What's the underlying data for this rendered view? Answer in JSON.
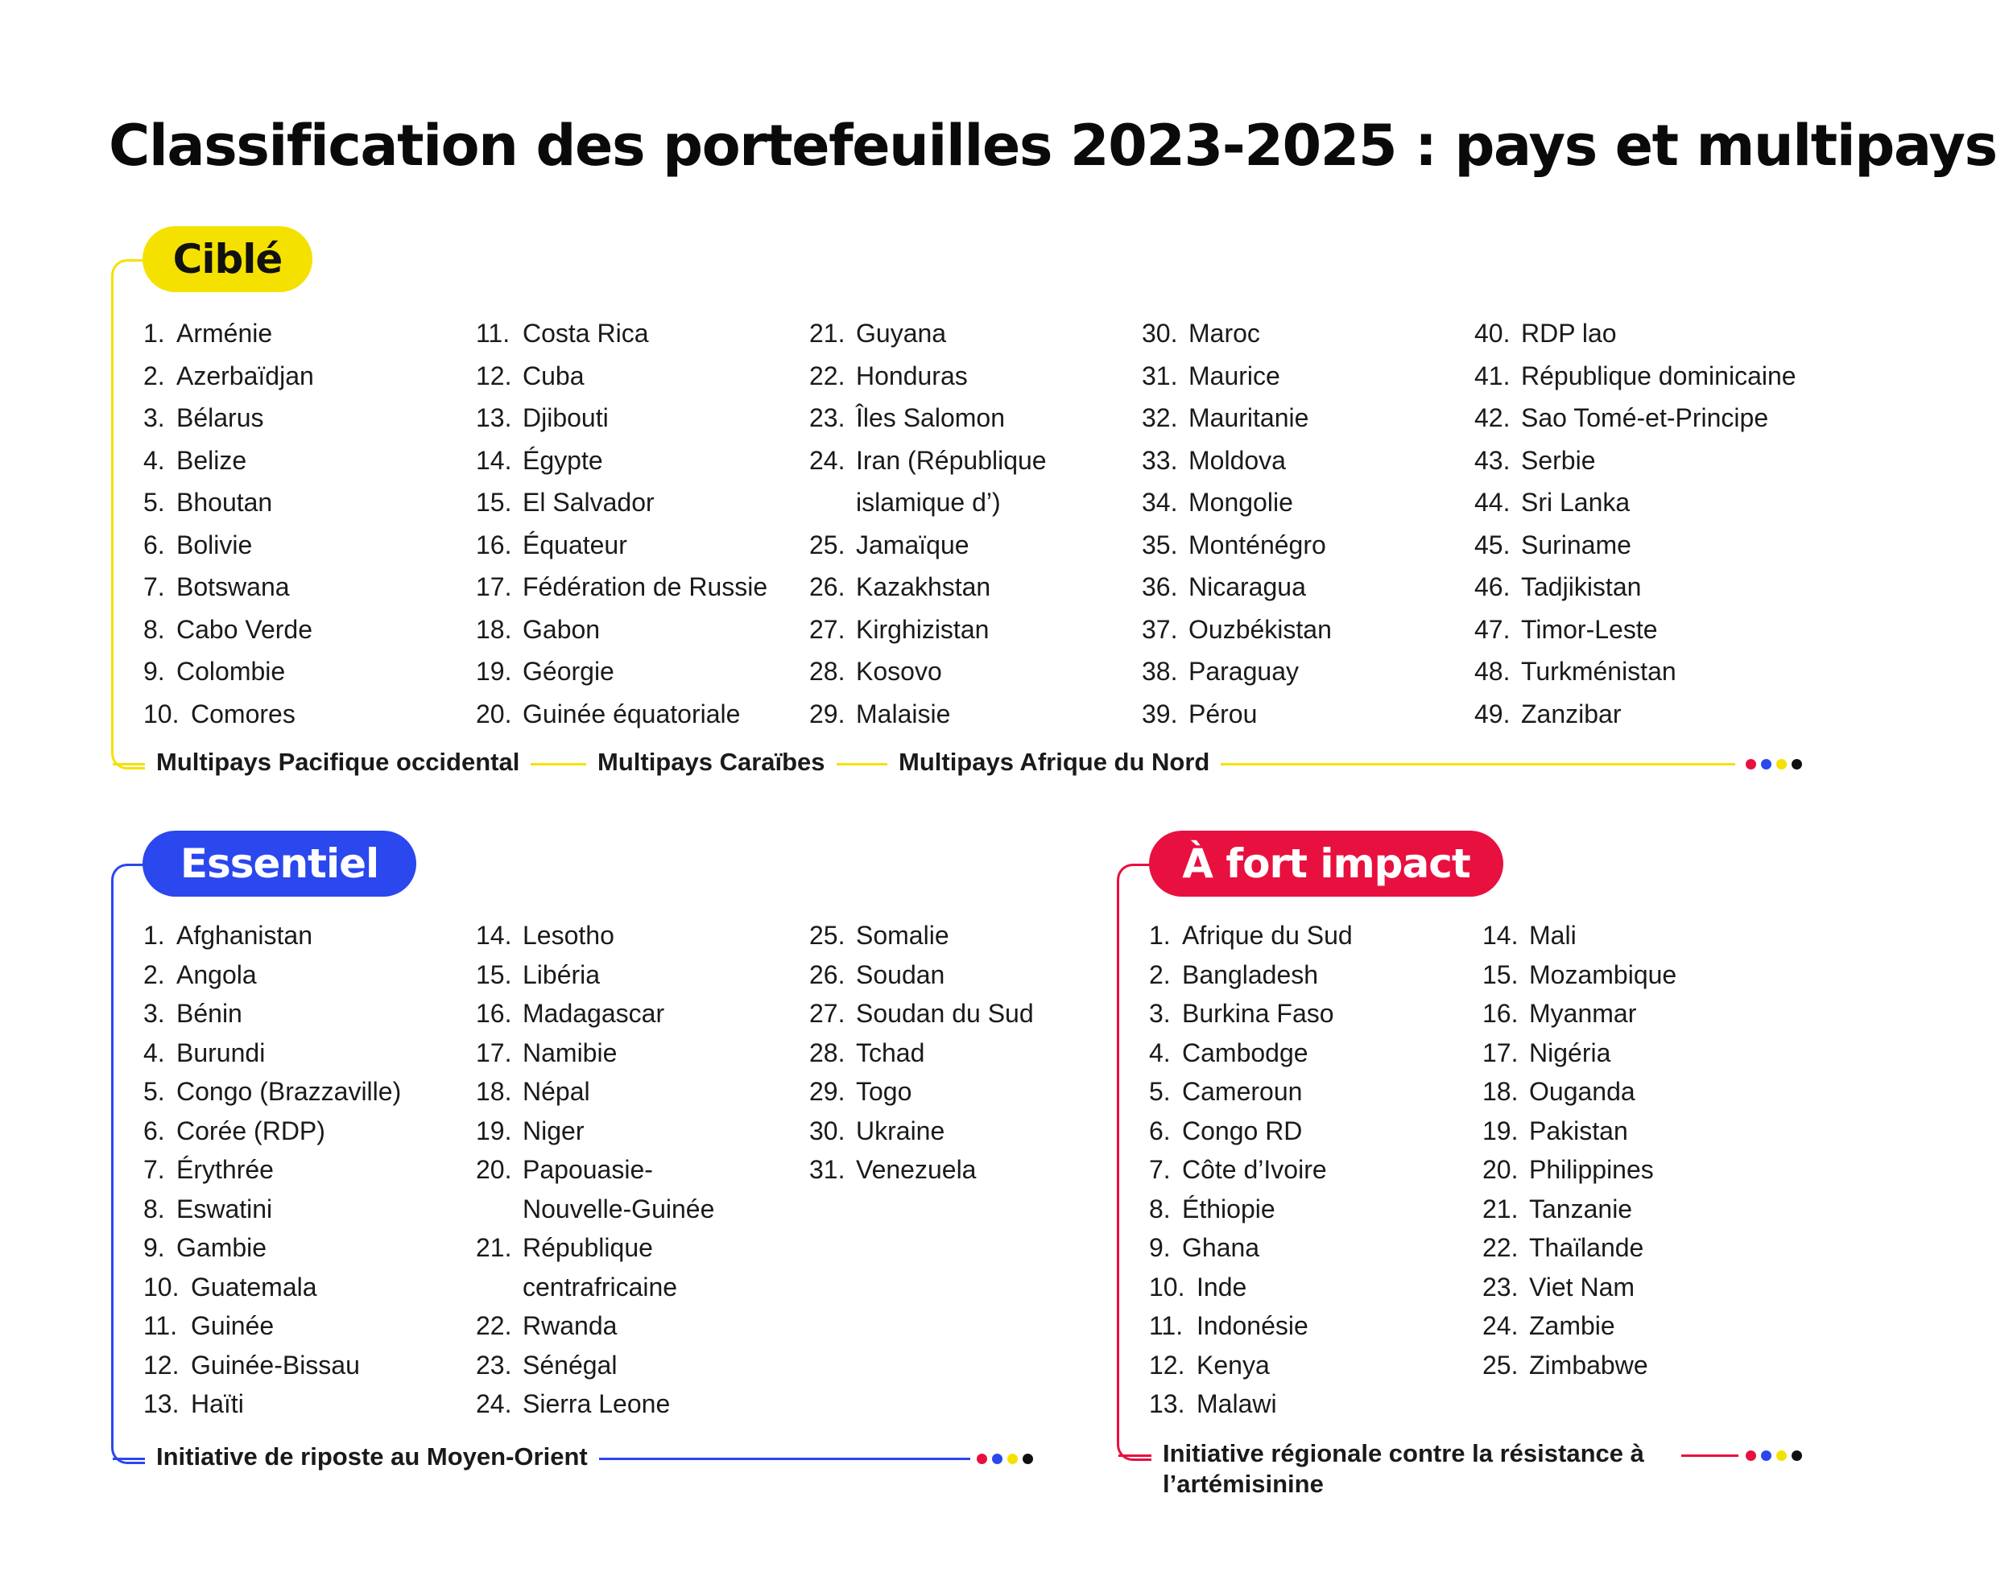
{
  "title": "Classification des portefeuilles 2023-2025 : pays et multipays",
  "colors": {
    "cible": "#f5e100",
    "essentiel": "#2b47ee",
    "impact": "#e8103f",
    "dark": "#111111"
  },
  "cible": {
    "label": "Ciblé",
    "columns": [
      [
        "1.|Arménie",
        "2.|Azerbaïdjan",
        "3.|Bélarus",
        "4.|Belize",
        "5.|Bhoutan",
        "6.|Bolivie",
        "7.|Botswana",
        "8.|Cabo Verde",
        "9.|Colombie",
        "10.|Comores"
      ],
      [
        "11.|Costa Rica",
        "12.|Cuba",
        "13.|Djibouti",
        "14.|Égypte",
        "15.|El Salvador",
        "16.|Équateur",
        "17.|Fédération de Russie",
        "18.|Gabon",
        "19.|Géorgie",
        "20.|Guinée équatoriale"
      ],
      [
        "21.|Guyana",
        "22.|Honduras",
        "23.|Îles Salomon",
        "24.|Iran (République islamique d’)",
        "25.|Jamaïque",
        "26.|Kazakhstan",
        "27.|Kirghizistan",
        "28.|Kosovo",
        "29.|Malaisie"
      ],
      [
        "30.|Maroc",
        "31.|Maurice",
        "32.|Mauritanie",
        "33.|Moldova",
        "34.|Mongolie",
        "35.|Monténégro",
        "36.|Nicaragua",
        "37.|Ouzbékistan",
        "38.|Paraguay",
        "39.|Pérou"
      ],
      [
        "40.|RDP lao",
        "41.|République dominicaine",
        "42.|Sao Tomé-et-Principe",
        "43.|Serbie",
        "44.|Sri Lanka",
        "45.|Suriname",
        "46.|Tadjikistan",
        "47.|Timor-Leste",
        "48.|Turkménistan",
        "49.|Zanzibar"
      ]
    ],
    "multicountry": [
      "Multipays Pacifique occidental",
      "Multipays Caraïbes",
      "Multipays Afrique du Nord"
    ]
  },
  "essentiel": {
    "label": "Essentiel",
    "columns": [
      [
        "1.|Afghanistan",
        "2.|Angola",
        "3.|Bénin",
        "4.|Burundi",
        "5.|Congo (Brazzaville)",
        "6.|Corée (RDP)",
        "7.|Érythrée",
        "8.|Eswatini",
        "9.|Gambie",
        "10.|Guatemala",
        "11.|Guinée",
        "12.|Guinée-Bissau",
        "13.|Haïti"
      ],
      [
        "14.|Lesotho",
        "15.|Libéria",
        "16.|Madagascar",
        "17.|Namibie",
        "18.|Népal",
        "19.|Niger",
        "20.|Papouasie-Nouvelle-Guinée",
        "21.|République centrafricaine",
        "22.|Rwanda",
        "23.|Sénégal",
        "24.|Sierra Leone"
      ],
      [
        "25.|Somalie",
        "26.|Soudan",
        "27.|Soudan du Sud",
        "28.|Tchad",
        "29.|Togo",
        "30.|Ukraine",
        "31.|Venezuela"
      ]
    ],
    "multicountry": [
      "Initiative de riposte au Moyen-Orient"
    ]
  },
  "impact": {
    "label": "À fort impact",
    "columns": [
      [
        "1.|Afrique du Sud",
        "2.|Bangladesh",
        "3.|Burkina Faso",
        "4.|Cambodge",
        "5.|Cameroun",
        "6.|Congo RD",
        "7.|Côte d’Ivoire",
        "8.|Éthiopie",
        "9.|Ghana",
        "10.|Inde",
        "11.|Indonésie",
        "12.|Kenya",
        "13.|Malawi"
      ],
      [
        "14.|Mali",
        "15.|Mozambique",
        "16.|Myanmar",
        "17.|Nigéria",
        "18.|Ouganda",
        "19.|Pakistan",
        "20.|Philippines",
        "21.|Tanzanie",
        "22.|Thaïlande",
        "23.|Viet Nam",
        "24.|Zambie",
        "25.|Zimbabwe"
      ]
    ],
    "multicountry": [
      "Initiative régionale contre la résistance à l’artémisinine"
    ]
  }
}
